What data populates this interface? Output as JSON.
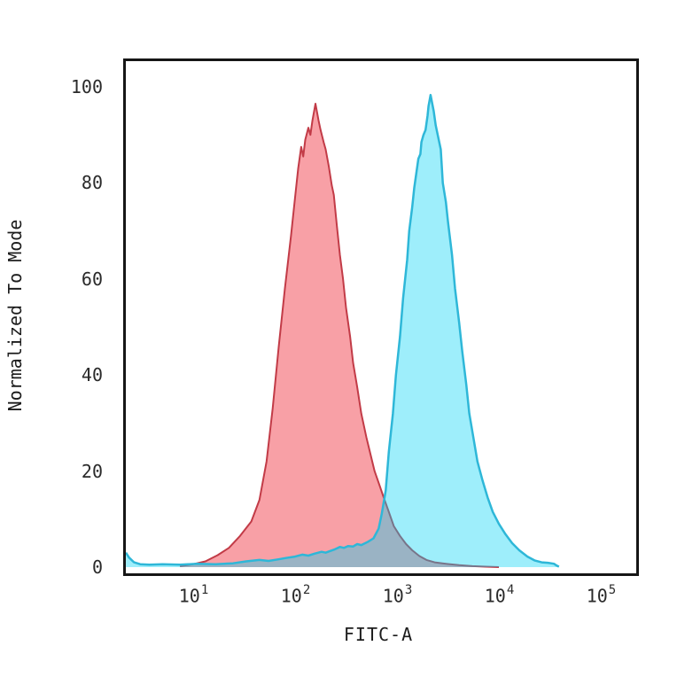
{
  "page_background": "#ffffff",
  "frame_color": "#161616",
  "text_color": "#262626",
  "chart_data": {
    "type": "area",
    "subtype": "flow-cytometry-overlay-histogram",
    "title": "",
    "xlabel": "FITC-A",
    "ylabel": "Normalized To Mode",
    "x_scale": "log10",
    "xlim_log": [
      0.339,
      5.348
    ],
    "ylim": [
      0,
      100
    ],
    "grid": false,
    "legend": "none",
    "x_ticks": [
      {
        "base": "10",
        "exp": "1"
      },
      {
        "base": "10",
        "exp": "2"
      },
      {
        "base": "10",
        "exp": "3"
      },
      {
        "base": "10",
        "exp": "4"
      },
      {
        "base": "10",
        "exp": "5"
      }
    ],
    "x_tick_exponents": [
      1,
      2,
      3,
      4,
      5
    ],
    "y_ticks": [
      0,
      20,
      40,
      60,
      80,
      100
    ],
    "series": [
      {
        "name": "red-histogram",
        "peak_x_log": 2.2,
        "peak_value": 96.5,
        "fill": "rgba(242,65,78,0.5)",
        "stroke": "#c23b47",
        "stroke_width": 2,
        "points": [
          [
            0.87,
            0.2
          ],
          [
            1.0,
            0.6
          ],
          [
            1.12,
            1.2
          ],
          [
            1.24,
            2.5
          ],
          [
            1.35,
            4.0
          ],
          [
            1.46,
            6.5
          ],
          [
            1.57,
            9.5
          ],
          [
            1.65,
            14
          ],
          [
            1.72,
            22
          ],
          [
            1.78,
            33
          ],
          [
            1.84,
            46
          ],
          [
            1.9,
            58
          ],
          [
            1.96,
            69
          ],
          [
            2.0,
            77
          ],
          [
            2.03,
            83
          ],
          [
            2.06,
            87.5
          ],
          [
            2.08,
            85.5
          ],
          [
            2.1,
            89
          ],
          [
            2.13,
            91.5
          ],
          [
            2.15,
            90
          ],
          [
            2.17,
            93
          ],
          [
            2.2,
            96.5
          ],
          [
            2.23,
            93
          ],
          [
            2.25,
            91
          ],
          [
            2.28,
            88.5
          ],
          [
            2.3,
            87
          ],
          [
            2.33,
            83.5
          ],
          [
            2.36,
            79.5
          ],
          [
            2.38,
            77.5
          ],
          [
            2.41,
            71
          ],
          [
            2.44,
            65
          ],
          [
            2.47,
            60
          ],
          [
            2.5,
            54
          ],
          [
            2.54,
            48
          ],
          [
            2.57,
            42.5
          ],
          [
            2.61,
            37.5
          ],
          [
            2.65,
            32
          ],
          [
            2.7,
            27
          ],
          [
            2.74,
            23.5
          ],
          [
            2.78,
            20
          ],
          [
            2.83,
            17
          ],
          [
            2.87,
            14.5
          ],
          [
            2.92,
            11.5
          ],
          [
            2.97,
            8.5
          ],
          [
            3.03,
            6.5
          ],
          [
            3.09,
            4.8
          ],
          [
            3.15,
            3.5
          ],
          [
            3.22,
            2.3
          ],
          [
            3.29,
            1.5
          ],
          [
            3.37,
            1.0
          ],
          [
            3.48,
            0.7
          ],
          [
            3.61,
            0.4
          ],
          [
            3.74,
            0.2
          ],
          [
            3.87,
            0.1
          ],
          [
            4.0,
            0.0
          ]
        ]
      },
      {
        "name": "cyan-histogram",
        "peak_x_log": 3.33,
        "peak_value": 98.3,
        "fill": "rgba(0,210,244,0.38)",
        "stroke": "#2eb7d8",
        "stroke_width": 2.5,
        "points": [
          [
            0.34,
            3.0
          ],
          [
            0.37,
            2.0
          ],
          [
            0.42,
            1.0
          ],
          [
            0.48,
            0.6
          ],
          [
            0.57,
            0.5
          ],
          [
            0.7,
            0.6
          ],
          [
            0.87,
            0.5
          ],
          [
            1.04,
            0.7
          ],
          [
            1.22,
            0.6
          ],
          [
            1.39,
            0.8
          ],
          [
            1.52,
            1.2
          ],
          [
            1.65,
            1.5
          ],
          [
            1.74,
            1.3
          ],
          [
            1.83,
            1.6
          ],
          [
            1.91,
            1.9
          ],
          [
            2.0,
            2.2
          ],
          [
            2.07,
            2.6
          ],
          [
            2.13,
            2.4
          ],
          [
            2.19,
            2.8
          ],
          [
            2.26,
            3.2
          ],
          [
            2.3,
            3.0
          ],
          [
            2.35,
            3.4
          ],
          [
            2.39,
            3.7
          ],
          [
            2.44,
            4.2
          ],
          [
            2.48,
            4.0
          ],
          [
            2.52,
            4.4
          ],
          [
            2.57,
            4.3
          ],
          [
            2.61,
            4.8
          ],
          [
            2.65,
            4.6
          ],
          [
            2.71,
            5.2
          ],
          [
            2.77,
            6.0
          ],
          [
            2.82,
            8.0
          ],
          [
            2.85,
            11
          ],
          [
            2.89,
            16
          ],
          [
            2.92,
            24
          ],
          [
            2.96,
            32
          ],
          [
            2.99,
            40
          ],
          [
            3.03,
            48
          ],
          [
            3.06,
            56
          ],
          [
            3.1,
            64
          ],
          [
            3.12,
            70
          ],
          [
            3.15,
            75
          ],
          [
            3.17,
            79
          ],
          [
            3.19,
            82
          ],
          [
            3.21,
            85
          ],
          [
            3.23,
            86
          ],
          [
            3.24,
            88.5
          ],
          [
            3.26,
            90
          ],
          [
            3.28,
            91
          ],
          [
            3.3,
            94
          ],
          [
            3.31,
            96
          ],
          [
            3.33,
            98.3
          ],
          [
            3.36,
            95
          ],
          [
            3.38,
            92
          ],
          [
            3.41,
            89
          ],
          [
            3.43,
            87
          ],
          [
            3.45,
            80
          ],
          [
            3.48,
            76
          ],
          [
            3.5,
            72
          ],
          [
            3.54,
            65
          ],
          [
            3.57,
            58
          ],
          [
            3.61,
            51
          ],
          [
            3.64,
            45
          ],
          [
            3.68,
            38
          ],
          [
            3.71,
            32
          ],
          [
            3.75,
            27
          ],
          [
            3.79,
            22
          ],
          [
            3.84,
            18
          ],
          [
            3.89,
            14.5
          ],
          [
            3.94,
            11.5
          ],
          [
            4.0,
            9.0
          ],
          [
            4.06,
            7.0
          ],
          [
            4.13,
            5.0
          ],
          [
            4.2,
            3.5
          ],
          [
            4.28,
            2.2
          ],
          [
            4.35,
            1.4
          ],
          [
            4.42,
            1.0
          ],
          [
            4.48,
            0.9
          ],
          [
            4.54,
            0.7
          ],
          [
            4.57,
            0.3
          ],
          [
            4.59,
            0.1
          ]
        ]
      }
    ]
  }
}
